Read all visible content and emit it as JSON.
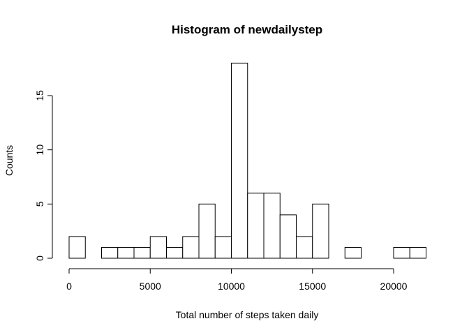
{
  "chart_data": {
    "type": "histogram",
    "title": "Histogram of newdailystep",
    "x_label": "Total number of steps taken daily",
    "y_label": "Counts",
    "bins": [
      0,
      1000,
      2000,
      3000,
      4000,
      5000,
      6000,
      7000,
      8000,
      9000,
      10000,
      11000,
      12000,
      13000,
      14000,
      15000,
      16000,
      17000,
      18000,
      19000,
      20000,
      21000,
      22000
    ],
    "counts": [
      2,
      0,
      1,
      1,
      1,
      2,
      1,
      2,
      5,
      2,
      18,
      6,
      6,
      4,
      2,
      5,
      0,
      1,
      0,
      0,
      1,
      1
    ],
    "color": "#ffffff",
    "edge_color": "#000000",
    "xlim": [
      0,
      22000
    ],
    "ylim": [
      0,
      18
    ],
    "xticks": [
      0,
      5000,
      10000,
      15000,
      20000
    ],
    "yticks": [
      0,
      5,
      10,
      15
    ]
  }
}
